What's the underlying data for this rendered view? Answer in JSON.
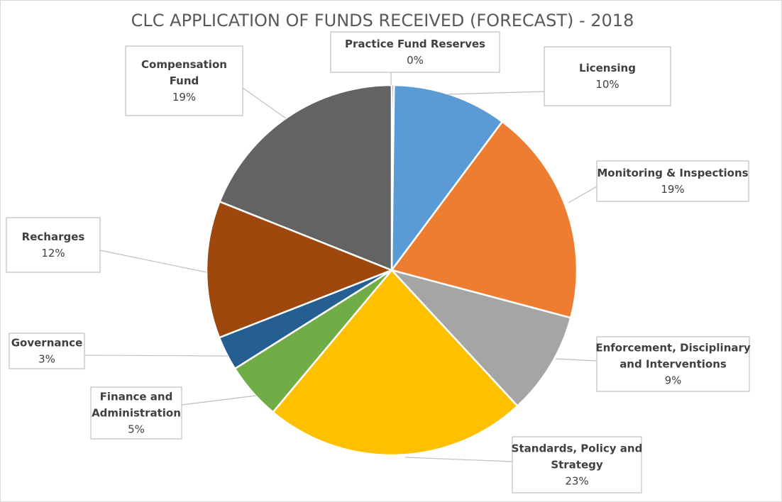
{
  "chart_data": {
    "type": "pie",
    "title": "CLC APPLICATION OF FUNDS RECEIVED (FORECAST) - 2018",
    "slices": [
      {
        "label": "Practice Fund Reserves",
        "value": 0.2,
        "percent_label": "0%",
        "color": "#4472c4"
      },
      {
        "label": "Licensing",
        "value": 10,
        "percent_label": "10%",
        "color": "#5b9bd5"
      },
      {
        "label": "Monitoring & Inspections",
        "value": 19,
        "percent_label": "19%",
        "color": "#ed7d31"
      },
      {
        "label": "Enforcement, Disciplinary and Interventions",
        "value": 9,
        "percent_label": "9%",
        "color": "#a5a5a5"
      },
      {
        "label": "Standards, Policy and Strategy",
        "value": 23,
        "percent_label": "23%",
        "color": "#ffc000"
      },
      {
        "label": "Finance and Administration",
        "value": 5,
        "percent_label": "5%",
        "color": "#70ad47"
      },
      {
        "label": "Governance",
        "value": 3,
        "percent_label": "3%",
        "color": "#255e91"
      },
      {
        "label": "Recharges",
        "value": 12,
        "percent_label": "12%",
        "color": "#9e480e"
      },
      {
        "label": "Compensation Fund",
        "value": 19,
        "percent_label": "19%",
        "color": "#636363"
      }
    ]
  }
}
